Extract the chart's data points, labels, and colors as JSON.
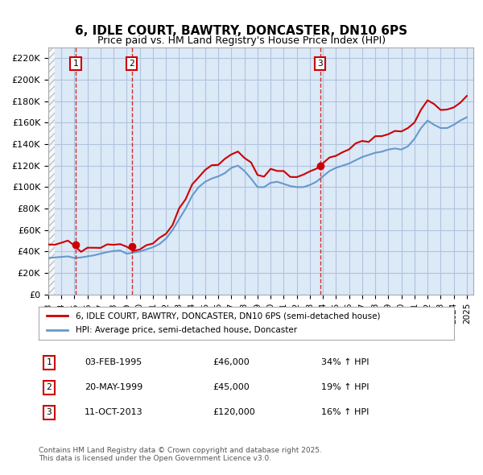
{
  "title": "6, IDLE COURT, BAWTRY, DONCASTER, DN10 6PS",
  "subtitle": "Price paid vs. HM Land Registry's House Price Index (HPI)",
  "ylabel": "",
  "xlabel": "",
  "ylim": [
    0,
    230000
  ],
  "yticks": [
    0,
    20000,
    40000,
    60000,
    80000,
    100000,
    120000,
    140000,
    160000,
    180000,
    200000,
    220000
  ],
  "ytick_labels": [
    "£0",
    "£20K",
    "£40K",
    "£60K",
    "£80K",
    "£100K",
    "£120K",
    "£140K",
    "£160K",
    "£180K",
    "£200K",
    "£220K"
  ],
  "xlim_start": 1993.0,
  "xlim_end": 2025.5,
  "sale_dates": [
    1995.09,
    1999.38,
    2013.78
  ],
  "sale_prices": [
    46000,
    45000,
    120000
  ],
  "sale_labels": [
    "1",
    "2",
    "3"
  ],
  "sale_date_strs": [
    "03-FEB-1995",
    "20-MAY-1999",
    "11-OCT-2013"
  ],
  "sale_price_strs": [
    "£46,000",
    "£45,000",
    "£120,000"
  ],
  "sale_hpi_strs": [
    "34% ↑ HPI",
    "19% ↑ HPI",
    "16% ↑ HPI"
  ],
  "legend_red": "6, IDLE COURT, BAWTRY, DONCASTER, DN10 6PS (semi-detached house)",
  "legend_blue": "HPI: Average price, semi-detached house, Doncaster",
  "footer": "Contains HM Land Registry data © Crown copyright and database right 2025.\nThis data is licensed under the Open Government Licence v3.0.",
  "bg_color": "#dce9f7",
  "hatch_color": "#c0c0c0",
  "grid_color": "#b0c4de",
  "red_line_color": "#cc0000",
  "blue_line_color": "#6699cc"
}
